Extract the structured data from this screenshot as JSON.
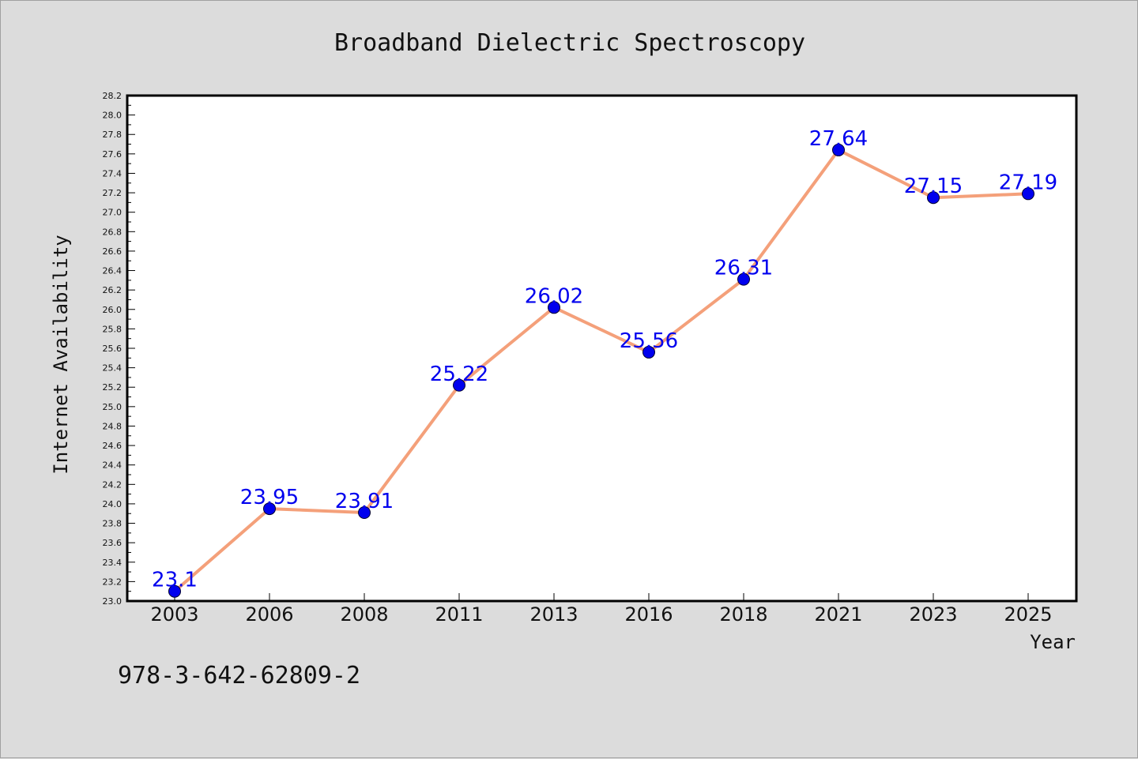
{
  "chart_data": {
    "type": "line",
    "title": "Broadband Dielectric Spectroscopy",
    "xlabel": "Year",
    "ylabel": "Internet Availability",
    "categories": [
      "2003",
      "2006",
      "2008",
      "2011",
      "2013",
      "2016",
      "2018",
      "2021",
      "2023",
      "2025"
    ],
    "series": [
      {
        "values": [
          23.1,
          23.95,
          23.91,
          25.22,
          26.02,
          25.56,
          26.31,
          27.64,
          27.15,
          27.19
        ],
        "line_color": "#f4a07a",
        "marker_color": "#0000ee"
      }
    ],
    "data_labels": [
      "23.1",
      "23.95",
      "23.91",
      "25.22",
      "26.02",
      "25.56",
      "26.31",
      "27.64",
      "27.15",
      "27.19"
    ],
    "ylim": [
      23.0,
      28.2
    ],
    "y_ticks": [
      "23.0",
      "23.2",
      "23.4",
      "23.6",
      "23.8",
      "24.0",
      "24.2",
      "24.4",
      "24.6",
      "24.8",
      "25.0",
      "25.2",
      "25.4",
      "25.6",
      "25.8",
      "26.0",
      "26.2",
      "26.4",
      "26.6",
      "26.8",
      "27.0",
      "27.2",
      "27.4",
      "27.6",
      "27.8",
      "28.0",
      "28.2"
    ],
    "grid": false,
    "annotation": "978-3-642-62809-2",
    "colors": {
      "background": "#dcdcdc",
      "plot_background": "#ffffff",
      "axis": "#000000",
      "text": "#111111"
    }
  }
}
